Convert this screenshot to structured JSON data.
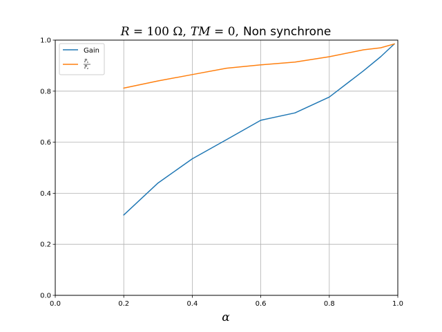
{
  "chart_data": {
    "type": "line",
    "title": {
      "r_part": "R",
      "r_value": " = 100 Ω,",
      "tm_part": "TM",
      "tm_value": " = 0,",
      "suffix": "Non synchrone"
    },
    "xlabel": "α",
    "ylabel": "",
    "xlim": [
      0.0,
      1.0
    ],
    "ylim": [
      0.0,
      1.0
    ],
    "xticks": [
      "0.0",
      "0.2",
      "0.4",
      "0.6",
      "0.8",
      "1.0"
    ],
    "yticks": [
      "0.0",
      "0.2",
      "0.4",
      "0.6",
      "0.8",
      "1.0"
    ],
    "grid": true,
    "legend_position": "top-left",
    "series": [
      {
        "name": "Gain",
        "color": "#1f77b4",
        "x": [
          0.2,
          0.3,
          0.4,
          0.5,
          0.6,
          0.7,
          0.8,
          0.9,
          0.95,
          0.99
        ],
        "y": [
          0.315,
          0.44,
          0.535,
          0.61,
          0.686,
          0.715,
          0.777,
          0.88,
          0.935,
          0.985
        ]
      },
      {
        "name_num": "P",
        "name_num_sub": "L",
        "name_den": "P",
        "name_den_sub": "e",
        "color": "#ff7f0e",
        "x": [
          0.2,
          0.3,
          0.4,
          0.5,
          0.6,
          0.7,
          0.8,
          0.9,
          0.95,
          0.99
        ],
        "y": [
          0.812,
          0.84,
          0.865,
          0.89,
          0.903,
          0.914,
          0.935,
          0.962,
          0.97,
          0.985
        ]
      }
    ]
  }
}
